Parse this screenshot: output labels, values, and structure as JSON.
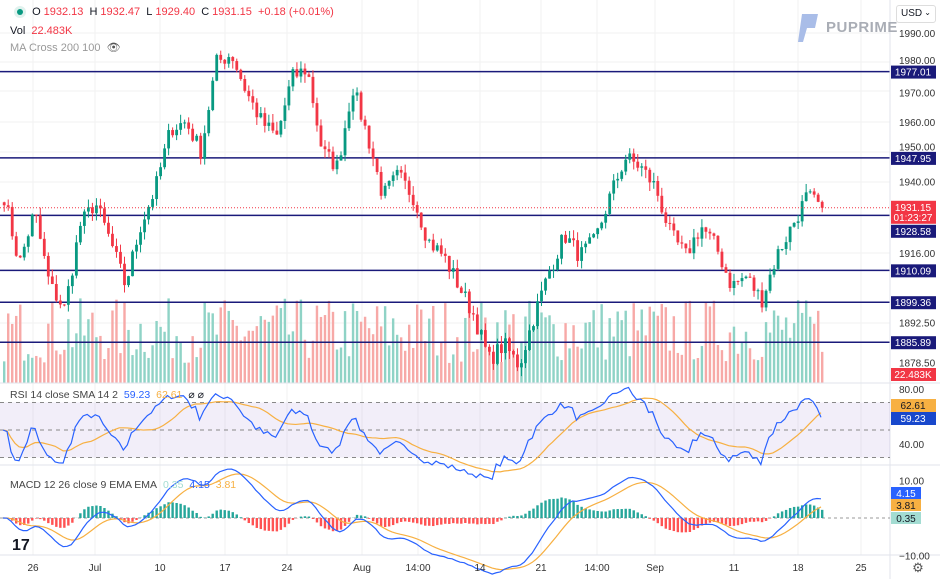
{
  "header": {
    "open_label": "O",
    "open": "1932.13",
    "high_label": "H",
    "high": "1932.47",
    "low_label": "L",
    "low": "1929.40",
    "close_label": "C",
    "close": "1931.15",
    "change": "+0.18 (+0.01%)",
    "vol_label": "Vol",
    "vol": "22.483K",
    "ma_label": "MA Cross 200 100"
  },
  "currency": "USD",
  "brand": "PUPRIME",
  "rsi_legend": {
    "label": "RSI 14 close SMA 14 2",
    "rsi": "59.23",
    "sma": "62.61",
    "na1": "⌀",
    "na2": "⌀"
  },
  "macd_legend": {
    "label": "MACD 12 26 close 9 EMA EMA",
    "hist": "0.35",
    "macd": "4.15",
    "signal": "3.81"
  },
  "colors": {
    "up": "#089981",
    "down": "#f23645",
    "level": "#1a1a7a",
    "rsi": "#2962ff",
    "sma": "#f7b042"
  },
  "chart_data": {
    "type": "candlestick",
    "price_axis_ticks": [
      "1990.00",
      "1980.00",
      "1970.00",
      "1960.00",
      "1950.00",
      "1940.00",
      "1916.00",
      "1892.50",
      "1878.50"
    ],
    "price_tick_values": [
      1990,
      1980,
      1970,
      1960,
      1950,
      1940,
      1916,
      1892.5,
      1878.5
    ],
    "x_ticks": [
      "26",
      "Jul",
      "10",
      "17",
      "24",
      "Aug",
      "14:00",
      "14",
      "21",
      "14:00",
      "Sep",
      "11",
      "18",
      "25"
    ],
    "levels": [
      {
        "value": 1977.01,
        "label": "1977.01"
      },
      {
        "value": 1947.95,
        "label": "1947.95"
      },
      {
        "value": 1928.58,
        "label": "1928.58"
      },
      {
        "value": 1910.09,
        "label": "1910.09"
      },
      {
        "value": 1899.36,
        "label": "1899.36"
      },
      {
        "value": 1885.89,
        "label": "1885.89"
      }
    ],
    "last_price": {
      "value": 1931.15,
      "label": "1931.15",
      "countdown": "01:23:27"
    },
    "last_volume": "22.483K",
    "approx_close_path": [
      1935,
      1912,
      1930,
      1905,
      1897,
      1925,
      1933,
      1920,
      1905,
      1925,
      1938,
      1958,
      1960,
      1950,
      1980,
      1983,
      1970,
      1960,
      1955,
      1975,
      1978,
      1950,
      1945,
      1972,
      1955,
      1935,
      1942,
      1935,
      1920,
      1915,
      1905,
      1895,
      1880,
      1885,
      1878,
      1895,
      1910,
      1922,
      1915,
      1920,
      1935,
      1948,
      1945,
      1938,
      1922,
      1915,
      1925,
      1918,
      1905,
      1908,
      1900,
      1915,
      1925,
      1935,
      1931
    ],
    "rsi": {
      "axis_ticks": [
        "80.00",
        "40.00"
      ],
      "tick_values": [
        80,
        40
      ],
      "bands": [
        70,
        50,
        30
      ],
      "last": "59.23",
      "sma_last": "62.61"
    },
    "macd": {
      "axis_ticks": [
        "10.00",
        "−10.00"
      ],
      "tick_values": [
        10,
        -10
      ],
      "macd_last": "4.15",
      "signal_last": "3.81",
      "hist_last": "0.35"
    }
  }
}
